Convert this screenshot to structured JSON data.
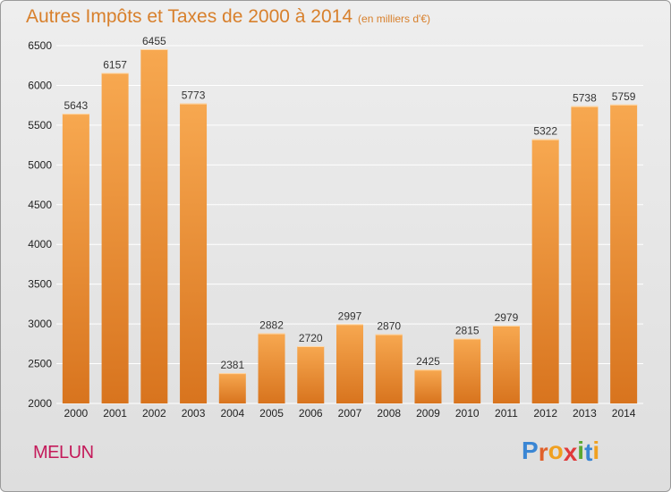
{
  "header": {
    "title": "Autres Impôts et Taxes de 2000 à 2014",
    "unit": "(en milliers d'€)"
  },
  "footer": {
    "city": "MELUN",
    "logo_letters": [
      "P",
      "r",
      "o",
      "x",
      "i",
      "t",
      "i"
    ],
    "logo_colors": [
      "#3a86d4",
      "#e0602a",
      "#f0a020",
      "#e03a3a",
      "#5aa832",
      "#3a86d4",
      "#f0a020"
    ]
  },
  "chart_data": {
    "type": "bar",
    "title": "Autres Impôts et Taxes de 2000 à 2014",
    "subtitle": "(en milliers d'€)",
    "categories": [
      "2000",
      "2001",
      "2002",
      "2003",
      "2004",
      "2005",
      "2006",
      "2007",
      "2008",
      "2009",
      "2010",
      "2011",
      "2012",
      "2013",
      "2014"
    ],
    "values": [
      5643,
      6157,
      6455,
      5773,
      2381,
      2882,
      2720,
      2997,
      2870,
      2425,
      2815,
      2979,
      5322,
      5738,
      5759
    ],
    "ylim": [
      2000,
      6500
    ],
    "yticks": [
      2000,
      2500,
      3000,
      3500,
      4000,
      4500,
      5000,
      5500,
      6000,
      6500
    ],
    "grid": true,
    "bar_color_light": "#f7a850",
    "bar_color_dark": "#d8741e",
    "gridline_color": "#ffffff"
  }
}
